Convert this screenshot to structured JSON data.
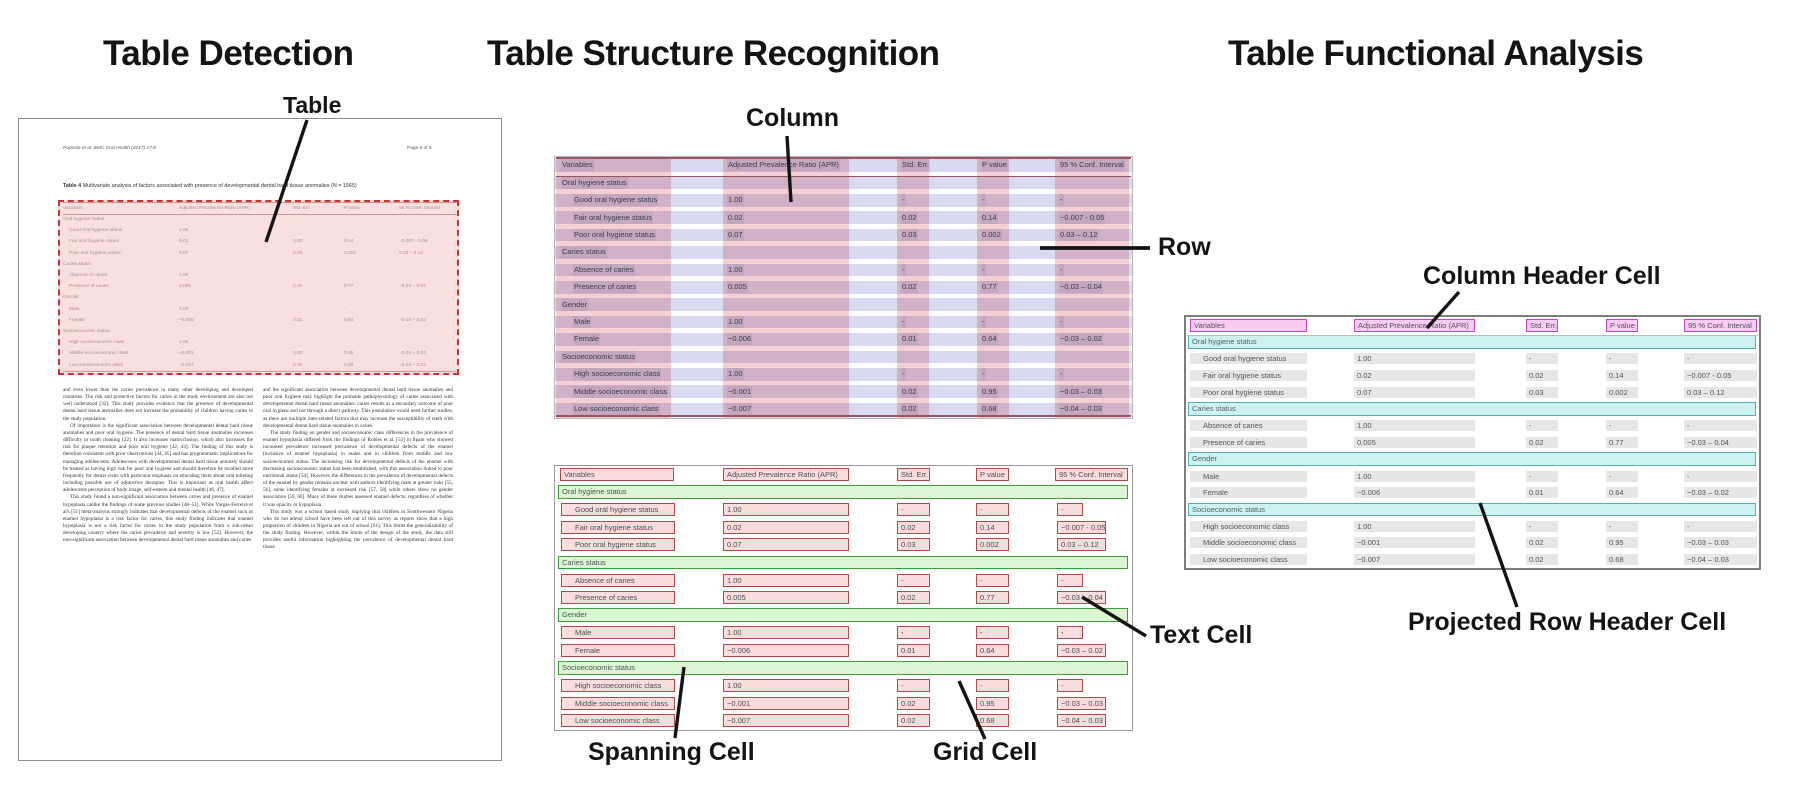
{
  "panel_titles": {
    "detection": "Table Detection",
    "structure": "Table Structure Recognition",
    "functional": "Table Functional Analysis"
  },
  "annotations": {
    "table": "Table",
    "column": "Column",
    "row": "Row",
    "text_cell": "Text Cell",
    "spanning_cell": "Spanning Cell",
    "grid_cell": "Grid Cell",
    "column_header_cell": "Column Header Cell",
    "projected_row_header_cell": "Projected Row Header Cell"
  },
  "document": {
    "header_left": "Popoola et al. BMC Oral Health  (2017) 17:8",
    "header_right": "Page 6 of 8",
    "caption_label": "Table 4",
    "caption_text": "Multivariate analysis of factors associated with presence of developmental dental hard tissue anomalies (N = 1565)",
    "body_left": [
      "and even lower than the caries prevalence in many other developing and developed countries. The risk and protective factors for caries in the study environment are also not well understood [32]. This study provides evidence that the presence of developmental dental hard tissue anomalies does not increase the probability of children having caries in the study population.",
      "Of importance is the significant association between developmental dental hard tissue anomalies and poor oral hygiene. The presence of dental hard tissue anomalies increases difficulty in tooth cleaning [22]. It also increases malocclusion, which also increases the risk for plaque retention and poor oral hygiene [42, 43]. The finding of this study is therefore consistent with prior observations [44, 45] and has programmatic implications for managing adolescents. Adolescents with developmental dental hard tissue anomaly should be treated as having high risk for poor oral hygiene and should therefore be recalled more frequently for dental visits with particular emphasis on educating them about oral toileting including possible use of adjunctive therapies. This is important as oral health affect adolescents perception of body image, self-esteem and mental health [46, 47].",
      "This study found a non-significant association between caries and presence of enamel hypoplasia unlike the findings of some previous studies [48–51]. While Vargas-Ferreira et al's [51] meta-analysis strongly indicates that developmental defects of the enamel such as enamel hypoplasia is a risk factor for caries, this study finding indicates that enamel hypoplasia is not a risk factor for caries in the study population from a sub-urban developing country where the caries prevalence and severity is low [52]. However, the non-significant association between developmental dental hard tissue anomalies and caries"
    ],
    "body_right": [
      "and the significant association between developmental dental hard tissue anomalies and poor oral hygiene may highlight the probable pathophysiology of caries associated with developmental dental hard tissue anomalies: caries results as a secondary outcome of poor oral hygiene and not through a direct pathway. This postulation would need further studies, as there are multiple inter-related factors that may increase the susceptibility of teeth with developmental dental hard tissue anomalies to caries.",
      "The study finding on gender and socioeconomic class differences in the prevalence of enamel hypoplasia differed from the findings of Robles et al. [53] in Spain who showed increased prevalence increased prevalence of developmental defects of the enamel (inclusive of enamel hypoplasia) in males and in children from middle and low socioeconomic status. The increasing risk for developmental defects of the enamel with decreasing socioeconomic status had been established, with this association linked to poor nutritional status [54]. However, the differences in the prevalence of developmental defects of the enamel by gender remains unclear with authors identifying male at greater risks [55, 56], some identifying females at increased risk [57, 58] while others show no gender association [59, 60]. Many of these studies assessed enamel defects, regardless of whether it was opacity or hypoplasia.",
      "This study was a school based study implying that children in Southwestern Nigeria who do not attend school have been left out of this survey as reports show that a high proportion of children in Nigeria are out of school [61]. This limits the generalizability of the study finding. However, within the limits of the design of the study, the data still provides useful information highlighting the prevalence of developmental dental hard tissue"
    ]
  },
  "table": {
    "columns": [
      "Variables",
      "Adjusted Prevalence Ratio (APR)",
      "Std. Err.",
      "P value",
      "95 % Conf. Interval"
    ],
    "rows": [
      {
        "type": "section",
        "label": "Oral hygiene status"
      },
      {
        "type": "data",
        "label": "Good oral hygiene status",
        "values": [
          "1.00",
          "-",
          "-",
          "-"
        ]
      },
      {
        "type": "data",
        "label": "Fair oral hygiene status",
        "values": [
          "0.02",
          "0.02",
          "0.14",
          "−0.007 - 0.05"
        ]
      },
      {
        "type": "data",
        "label": "Poor oral hygiene status",
        "values": [
          "0.07",
          "0.03",
          "0.002",
          "0.03 – 0.12"
        ]
      },
      {
        "type": "section",
        "label": "Caries status"
      },
      {
        "type": "data",
        "label": "Absence of caries",
        "values": [
          "1.00",
          "-",
          "-",
          "-"
        ]
      },
      {
        "type": "data",
        "label": "Presence of caries",
        "values": [
          "0.005",
          "0.02",
          "0.77",
          "−0.03 – 0.04"
        ]
      },
      {
        "type": "section",
        "label": "Gender"
      },
      {
        "type": "data",
        "label": "Male",
        "values": [
          "1.00",
          "-",
          "-",
          "-"
        ]
      },
      {
        "type": "data",
        "label": "Female",
        "values": [
          "−0.006",
          "0.01",
          "0.64",
          "−0.03 – 0.02"
        ]
      },
      {
        "type": "section",
        "label": "Socioeconomic status"
      },
      {
        "type": "data",
        "label": "High socioeconomic class",
        "values": [
          "1.00",
          "-",
          "-",
          "-"
        ]
      },
      {
        "type": "data",
        "label": "Middle socioeconomic class",
        "values": [
          "−0.001",
          "0.02",
          "0.95",
          "−0.03 – 0.03"
        ]
      },
      {
        "type": "data",
        "label": "Low socioeconomic class",
        "values": [
          "−0.007",
          "0.02",
          "0.68",
          "−0.04 – 0.03"
        ]
      }
    ]
  },
  "colors": {
    "detection_box_border": "#cc3333",
    "detection_box_fill": "#f6c0c0",
    "structure_column_pink": "#f6cfd4",
    "structure_row_lavender": "#d9daf1",
    "grid_cell_fill": "#fadedd",
    "grid_cell_border": "#b04a4a",
    "spanning_cell_fill": "#dcf5d2",
    "spanning_cell_border": "#3f9e3b",
    "column_header_fill": "#f9cbf3",
    "column_header_border": "#c645c6",
    "projected_row_header_fill": "#cdf2f0",
    "projected_row_header_border": "#55aeb4",
    "text_cell_fill": "#e6e6e6"
  }
}
